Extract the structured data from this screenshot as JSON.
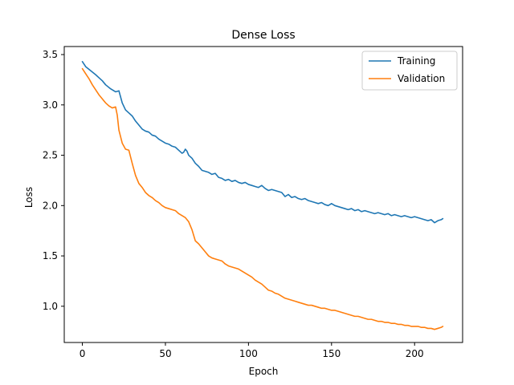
{
  "chart_data": {
    "type": "line",
    "title": "Dense Loss",
    "xlabel": "Epoch",
    "ylabel": "Loss",
    "xlim": [
      -10.9,
      228.9
    ],
    "ylim": [
      0.64,
      3.58
    ],
    "xticks": [
      0,
      50,
      100,
      150,
      200
    ],
    "yticks": [
      1.0,
      1.5,
      2.0,
      2.5,
      3.0,
      3.5
    ],
    "xtick_labels": [
      "0",
      "50",
      "100",
      "150",
      "200"
    ],
    "ytick_labels": [
      "1.0",
      "1.5",
      "2.0",
      "2.5",
      "3.0",
      "3.5"
    ],
    "grid": false,
    "legend": "top-right",
    "series": [
      {
        "name": "Training",
        "color": "#1f77b4",
        "points": [
          [
            0,
            3.43
          ],
          [
            2,
            3.38
          ],
          [
            5,
            3.34
          ],
          [
            8,
            3.3
          ],
          [
            10,
            3.27
          ],
          [
            12,
            3.24
          ],
          [
            14,
            3.2
          ],
          [
            17,
            3.16
          ],
          [
            20,
            3.13
          ],
          [
            22,
            3.14
          ],
          [
            24,
            3.02
          ],
          [
            26,
            2.95
          ],
          [
            28,
            2.92
          ],
          [
            30,
            2.89
          ],
          [
            32,
            2.84
          ],
          [
            34,
            2.8
          ],
          [
            36,
            2.76
          ],
          [
            38,
            2.74
          ],
          [
            40,
            2.73
          ],
          [
            42,
            2.7
          ],
          [
            44,
            2.69
          ],
          [
            46,
            2.66
          ],
          [
            48,
            2.64
          ],
          [
            50,
            2.62
          ],
          [
            52,
            2.61
          ],
          [
            54,
            2.59
          ],
          [
            56,
            2.58
          ],
          [
            58,
            2.55
          ],
          [
            60,
            2.52
          ],
          [
            61,
            2.53
          ],
          [
            62,
            2.56
          ],
          [
            63,
            2.54
          ],
          [
            64,
            2.5
          ],
          [
            66,
            2.47
          ],
          [
            68,
            2.42
          ],
          [
            70,
            2.39
          ],
          [
            72,
            2.35
          ],
          [
            74,
            2.34
          ],
          [
            76,
            2.33
          ],
          [
            78,
            2.31
          ],
          [
            80,
            2.32
          ],
          [
            82,
            2.28
          ],
          [
            84,
            2.27
          ],
          [
            86,
            2.25
          ],
          [
            88,
            2.26
          ],
          [
            90,
            2.24
          ],
          [
            92,
            2.25
          ],
          [
            94,
            2.23
          ],
          [
            96,
            2.22
          ],
          [
            98,
            2.23
          ],
          [
            100,
            2.21
          ],
          [
            102,
            2.2
          ],
          [
            104,
            2.19
          ],
          [
            106,
            2.18
          ],
          [
            108,
            2.2
          ],
          [
            110,
            2.17
          ],
          [
            112,
            2.15
          ],
          [
            114,
            2.16
          ],
          [
            116,
            2.15
          ],
          [
            118,
            2.14
          ],
          [
            120,
            2.13
          ],
          [
            122,
            2.09
          ],
          [
            124,
            2.11
          ],
          [
            126,
            2.08
          ],
          [
            128,
            2.09
          ],
          [
            130,
            2.07
          ],
          [
            132,
            2.06
          ],
          [
            134,
            2.07
          ],
          [
            136,
            2.05
          ],
          [
            138,
            2.04
          ],
          [
            140,
            2.03
          ],
          [
            142,
            2.02
          ],
          [
            144,
            2.03
          ],
          [
            146,
            2.01
          ],
          [
            148,
            2.0
          ],
          [
            150,
            2.02
          ],
          [
            152,
            2.0
          ],
          [
            154,
            1.99
          ],
          [
            156,
            1.98
          ],
          [
            158,
            1.97
          ],
          [
            160,
            1.96
          ],
          [
            162,
            1.97
          ],
          [
            164,
            1.95
          ],
          [
            166,
            1.96
          ],
          [
            168,
            1.94
          ],
          [
            170,
            1.95
          ],
          [
            172,
            1.94
          ],
          [
            174,
            1.93
          ],
          [
            176,
            1.92
          ],
          [
            178,
            1.93
          ],
          [
            180,
            1.92
          ],
          [
            182,
            1.91
          ],
          [
            184,
            1.92
          ],
          [
            186,
            1.9
          ],
          [
            188,
            1.91
          ],
          [
            190,
            1.9
          ],
          [
            192,
            1.89
          ],
          [
            194,
            1.9
          ],
          [
            196,
            1.89
          ],
          [
            198,
            1.88
          ],
          [
            200,
            1.89
          ],
          [
            202,
            1.88
          ],
          [
            204,
            1.87
          ],
          [
            206,
            1.86
          ],
          [
            208,
            1.85
          ],
          [
            210,
            1.86
          ],
          [
            212,
            1.83
          ],
          [
            214,
            1.85
          ],
          [
            216,
            1.86
          ],
          [
            217,
            1.87
          ]
        ]
      },
      {
        "name": "Validation",
        "color": "#ff7f0e",
        "points": [
          [
            0,
            3.36
          ],
          [
            2,
            3.31
          ],
          [
            4,
            3.26
          ],
          [
            6,
            3.2
          ],
          [
            8,
            3.15
          ],
          [
            10,
            3.1
          ],
          [
            12,
            3.06
          ],
          [
            14,
            3.02
          ],
          [
            16,
            2.99
          ],
          [
            18,
            2.97
          ],
          [
            20,
            2.98
          ],
          [
            21,
            2.9
          ],
          [
            22,
            2.75
          ],
          [
            24,
            2.62
          ],
          [
            26,
            2.56
          ],
          [
            28,
            2.55
          ],
          [
            30,
            2.42
          ],
          [
            32,
            2.3
          ],
          [
            34,
            2.22
          ],
          [
            36,
            2.18
          ],
          [
            38,
            2.13
          ],
          [
            40,
            2.1
          ],
          [
            42,
            2.08
          ],
          [
            44,
            2.05
          ],
          [
            46,
            2.03
          ],
          [
            48,
            2.0
          ],
          [
            50,
            1.98
          ],
          [
            52,
            1.97
          ],
          [
            54,
            1.96
          ],
          [
            56,
            1.95
          ],
          [
            58,
            1.92
          ],
          [
            60,
            1.9
          ],
          [
            62,
            1.88
          ],
          [
            64,
            1.84
          ],
          [
            66,
            1.76
          ],
          [
            68,
            1.65
          ],
          [
            70,
            1.62
          ],
          [
            72,
            1.58
          ],
          [
            74,
            1.54
          ],
          [
            76,
            1.5
          ],
          [
            78,
            1.48
          ],
          [
            80,
            1.47
          ],
          [
            82,
            1.46
          ],
          [
            84,
            1.45
          ],
          [
            86,
            1.42
          ],
          [
            88,
            1.4
          ],
          [
            90,
            1.39
          ],
          [
            92,
            1.38
          ],
          [
            94,
            1.37
          ],
          [
            96,
            1.35
          ],
          [
            98,
            1.33
          ],
          [
            100,
            1.31
          ],
          [
            102,
            1.29
          ],
          [
            104,
            1.26
          ],
          [
            106,
            1.24
          ],
          [
            108,
            1.22
          ],
          [
            110,
            1.19
          ],
          [
            112,
            1.16
          ],
          [
            114,
            1.15
          ],
          [
            116,
            1.13
          ],
          [
            118,
            1.12
          ],
          [
            120,
            1.1
          ],
          [
            122,
            1.08
          ],
          [
            124,
            1.07
          ],
          [
            126,
            1.06
          ],
          [
            128,
            1.05
          ],
          [
            130,
            1.04
          ],
          [
            132,
            1.03
          ],
          [
            134,
            1.02
          ],
          [
            136,
            1.01
          ],
          [
            138,
            1.01
          ],
          [
            140,
            1.0
          ],
          [
            142,
            0.99
          ],
          [
            144,
            0.98
          ],
          [
            146,
            0.98
          ],
          [
            148,
            0.97
          ],
          [
            150,
            0.96
          ],
          [
            152,
            0.96
          ],
          [
            154,
            0.95
          ],
          [
            156,
            0.94
          ],
          [
            158,
            0.93
          ],
          [
            160,
            0.92
          ],
          [
            162,
            0.91
          ],
          [
            164,
            0.9
          ],
          [
            166,
            0.9
          ],
          [
            168,
            0.89
          ],
          [
            170,
            0.88
          ],
          [
            172,
            0.87
          ],
          [
            174,
            0.87
          ],
          [
            176,
            0.86
          ],
          [
            178,
            0.85
          ],
          [
            180,
            0.85
          ],
          [
            182,
            0.84
          ],
          [
            184,
            0.84
          ],
          [
            186,
            0.83
          ],
          [
            188,
            0.83
          ],
          [
            190,
            0.82
          ],
          [
            192,
            0.82
          ],
          [
            194,
            0.81
          ],
          [
            196,
            0.81
          ],
          [
            198,
            0.8
          ],
          [
            200,
            0.8
          ],
          [
            202,
            0.8
          ],
          [
            204,
            0.79
          ],
          [
            206,
            0.79
          ],
          [
            208,
            0.78
          ],
          [
            210,
            0.78
          ],
          [
            212,
            0.77
          ],
          [
            214,
            0.78
          ],
          [
            216,
            0.79
          ],
          [
            217,
            0.8
          ]
        ]
      }
    ]
  }
}
